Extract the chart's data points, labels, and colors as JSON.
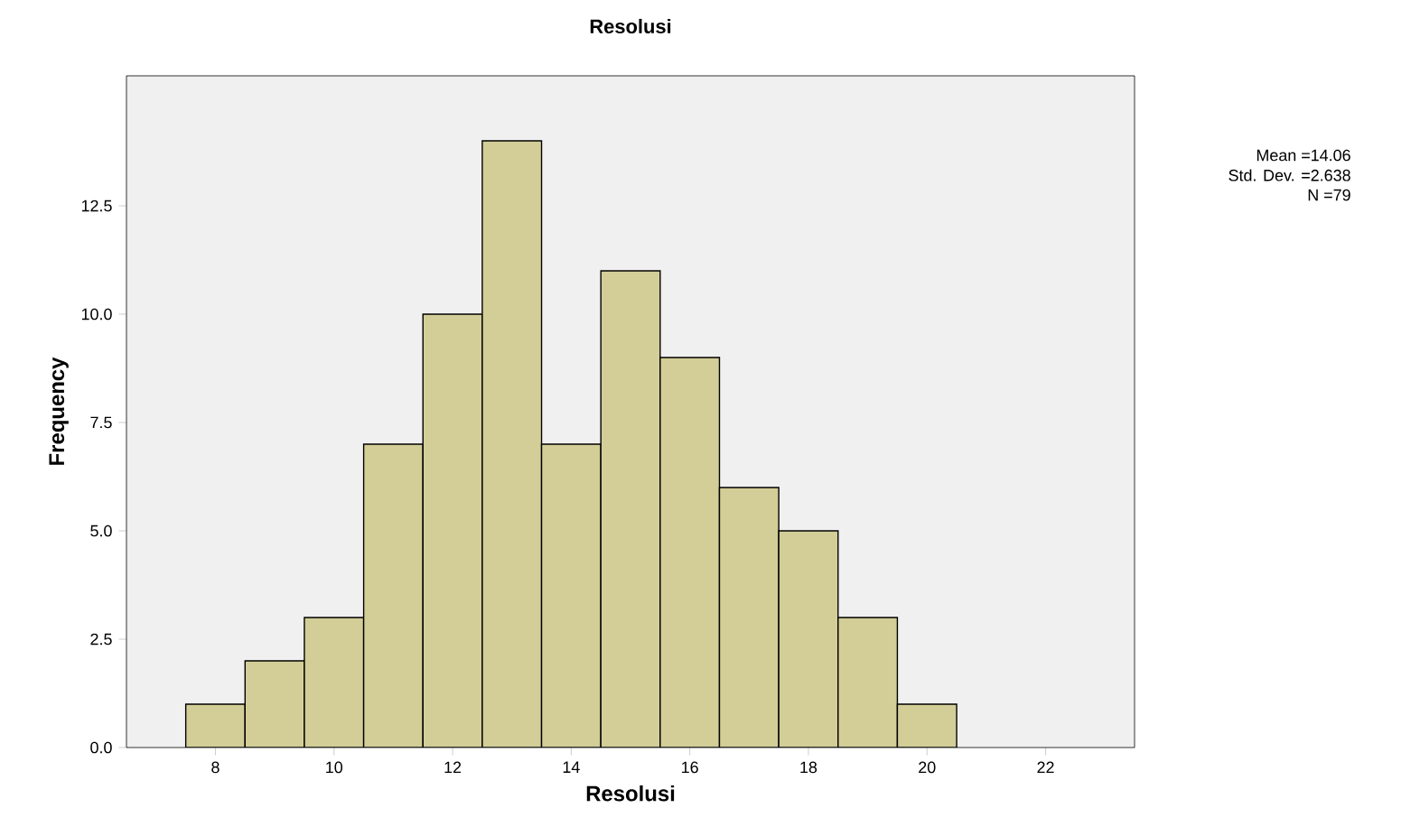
{
  "chart_data": {
    "type": "histogram",
    "title": "Resolusi",
    "xlabel": "Resolusi",
    "ylabel": "Frequency",
    "bins": [
      7.5,
      8.5,
      9.5,
      10.5,
      11.5,
      12.5,
      13.5,
      14.5,
      15.5,
      16.5,
      17.5,
      18.5,
      19.5,
      20.5
    ],
    "values": [
      1,
      2,
      3,
      7,
      10,
      14,
      7,
      11,
      9,
      6,
      5,
      3,
      1
    ],
    "color": "#d3ce97",
    "xlim": [
      6.5,
      23.5
    ],
    "xticks": [
      8,
      10,
      12,
      14,
      16,
      18,
      20,
      22
    ],
    "ylim": [
      0,
      15.5
    ],
    "yticks": [
      {
        "value": 0,
        "label": "0.0"
      },
      {
        "value": 2.5,
        "label": "2.5"
      },
      {
        "value": 5,
        "label": "5.0"
      },
      {
        "value": 7.5,
        "label": "7.5"
      },
      {
        "value": 10,
        "label": "10.0"
      },
      {
        "value": 12.5,
        "label": "12.5"
      }
    ],
    "grid": false,
    "annotations": [
      "Mean =14.06",
      "Std. Dev. =2.638",
      "N =79"
    ]
  }
}
